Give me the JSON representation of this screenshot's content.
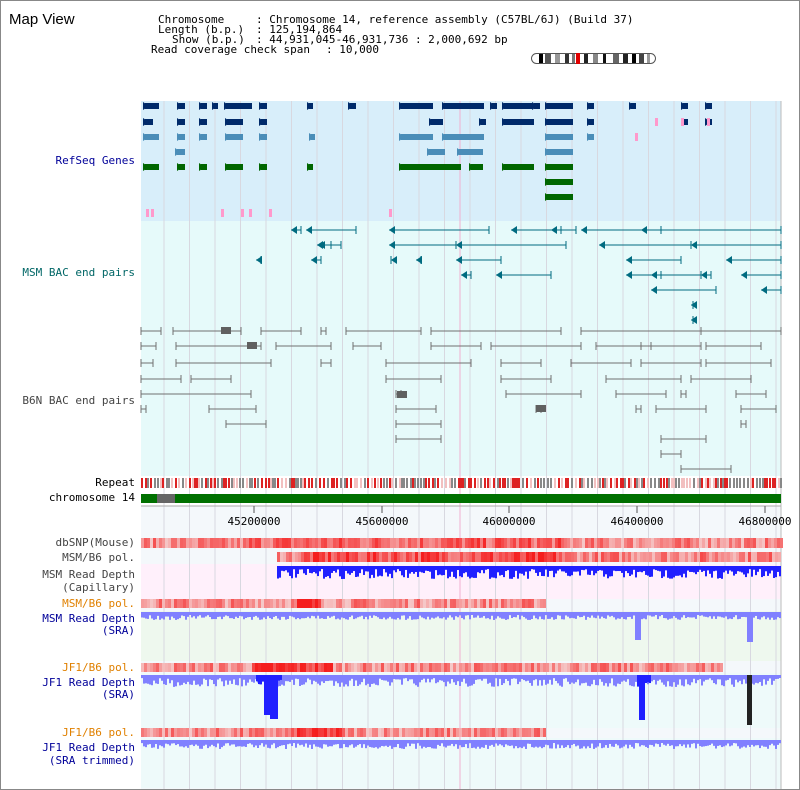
{
  "window": {
    "title": "Map View"
  },
  "info": {
    "chromosome_label": "Chromosome",
    "chromosome_value": ": Chromosome 14, reference assembly (C57BL/6J) (Build 37)",
    "length_label": "Length (b.p.)",
    "length_value": ": 125,194,864",
    "show_label": "Show (b.p.)",
    "show_value": ": 44,931,045-46,931,736 : 2,000,692 bp",
    "coverage_label": "Read coverage check span",
    "coverage_value": ": 10,000"
  },
  "tracks": {
    "refseq": "RefSeq Genes",
    "msm_bac": "MSM BAC end pairs",
    "b6n_bac": "B6N BAC end pairs",
    "repeat": "Repeat",
    "chromosome": "chromosome 14",
    "dbsnp": "dbSNP(Mouse)",
    "msm_b6_pol_1": "MSM/B6 pol.",
    "msm_read_depth_cap_1": "MSM Read Depth",
    "msm_read_depth_cap_2": "(Capillary)",
    "msm_b6_pol_2": "MSM/B6 pol.",
    "msm_read_depth_sra_1": "MSM Read Depth",
    "msm_read_depth_sra_2": "(SRA)",
    "jf1_b6_pol_1": "JF1/B6 pol.",
    "jf1_read_depth_sra_1": "JF1 Read Depth",
    "jf1_read_depth_sra_2": "(SRA)",
    "jf1_b6_pol_2": "JF1/B6 pol.",
    "jf1_read_depth_trim_1": "JF1 Read Depth",
    "jf1_read_depth_trim_2": "(SRA trimmed)"
  },
  "axis": {
    "ticks": [
      "45200000",
      "45600000",
      "46000000",
      "46400000",
      "46800000"
    ]
  },
  "colors": {
    "refseq_bg": "#d8eefa",
    "bac_bg": "#e6fafa",
    "plot_bg": "#f4f8fb",
    "gene_navy": "#002a6a",
    "gene_steel": "#4a8db8",
    "gene_green": "#006600",
    "gene_pink": "#ff99cc",
    "msm_pair": "#006b80",
    "b6n_pair": "#707070",
    "chromosome_band": "#007000",
    "depth_blue": "#2020ff",
    "depth_light": "#8080ff",
    "pol_red": "#e02020",
    "label_blue": "#000099",
    "label_teal": "#006666",
    "label_gray": "#444444",
    "label_orange": "#e08000"
  },
  "icons": {
    "ideogram": "chromosome-ideogram-icon"
  }
}
